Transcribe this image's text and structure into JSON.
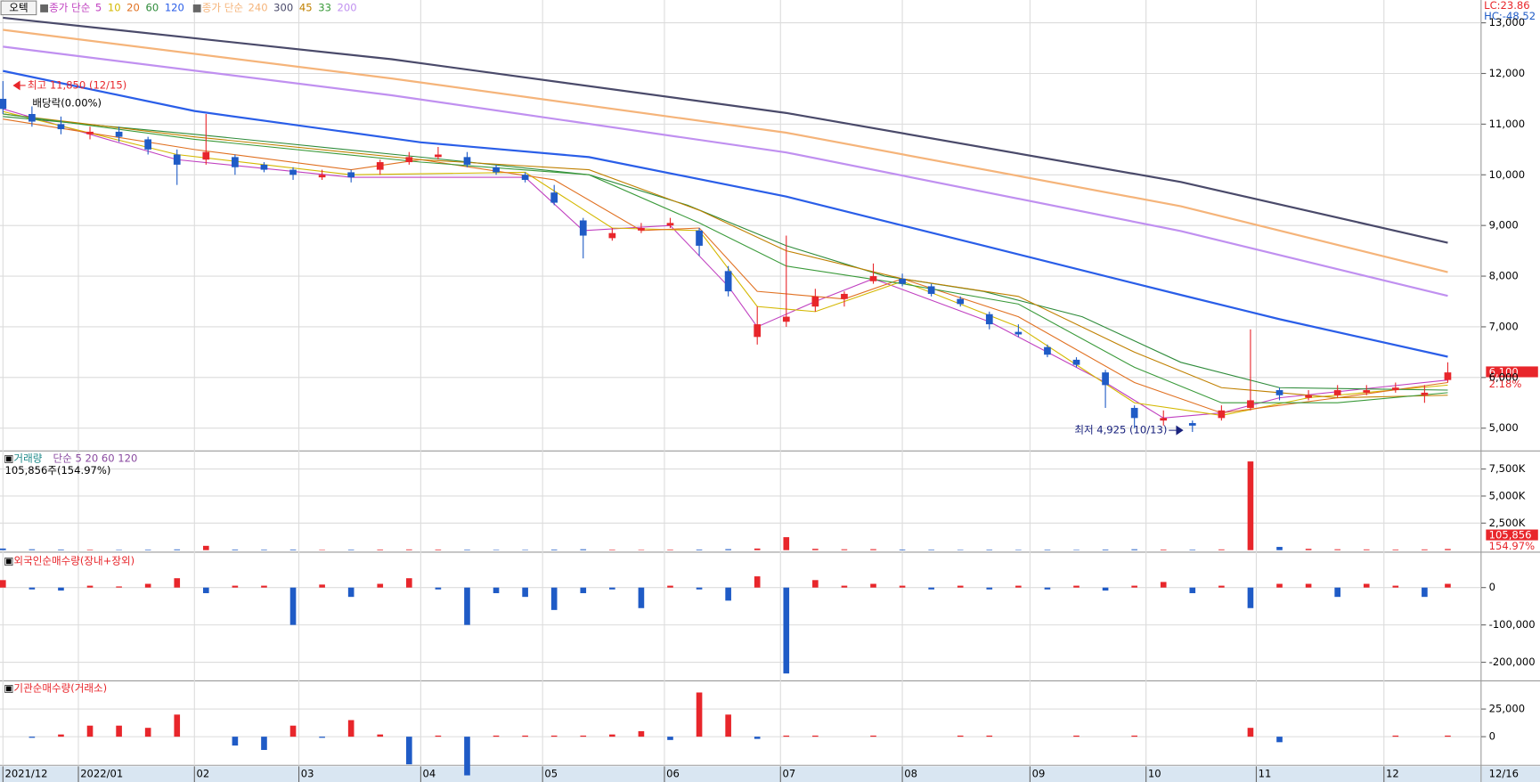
{
  "chart_data": {
    "type": "candlestick",
    "stock_button": "오텍",
    "lc_label": "LC:23.86",
    "hc_label": "HC:-48.52",
    "x": [
      0,
      5,
      10,
      15,
      20,
      25,
      30,
      35,
      40,
      45,
      50,
      55,
      60,
      65,
      70,
      75,
      80,
      85,
      90,
      95,
      100,
      105,
      110,
      115,
      120,
      125,
      130,
      135,
      140,
      145,
      150,
      155,
      160,
      165,
      170,
      175,
      180,
      185,
      190,
      195,
      200,
      205,
      210,
      215,
      220,
      225,
      230,
      235,
      240,
      245,
      249
    ],
    "xlim": [
      0,
      250
    ],
    "xticks": [
      {
        "value": 0,
        "label": "2021/12"
      },
      {
        "value": 13,
        "label": "2022/01"
      },
      {
        "value": 33,
        "label": "02"
      },
      {
        "value": 51,
        "label": "03"
      },
      {
        "value": 72,
        "label": "04"
      },
      {
        "value": 93,
        "label": "05"
      },
      {
        "value": 114,
        "label": "06"
      },
      {
        "value": 134,
        "label": "07"
      },
      {
        "value": 155,
        "label": "08"
      },
      {
        "value": 177,
        "label": "09"
      },
      {
        "value": 197,
        "label": "10"
      },
      {
        "value": 216,
        "label": "11"
      },
      {
        "value": 238,
        "label": "12"
      }
    ],
    "end_date_label": "12/16",
    "price": {
      "open": [
        11500,
        11200,
        11000,
        10800,
        10850,
        10700,
        10400,
        10300,
        10350,
        10200,
        10100,
        9950,
        10050,
        10100,
        10250,
        10350,
        10350,
        10150,
        10000,
        9650,
        9100,
        8750,
        8900,
        9000,
        8900,
        8100,
        6800,
        7100,
        7400,
        7550,
        7900,
        7950,
        7800,
        7550,
        7250,
        6900,
        6600,
        6350,
        6100,
        5400,
        5150,
        5100,
        5200,
        5400,
        5750,
        5600,
        5650,
        5700,
        5750,
        5650,
        5950
      ],
      "high": [
        11850,
        11350,
        11150,
        10950,
        10950,
        10750,
        10500,
        11200,
        10400,
        10250,
        10150,
        10100,
        10100,
        10300,
        10450,
        10550,
        10450,
        10200,
        10050,
        9800,
        9150,
        8950,
        9050,
        9150,
        8950,
        8200,
        7400,
        8800,
        7750,
        7700,
        8250,
        8050,
        7850,
        7600,
        7300,
        7050,
        6650,
        6400,
        6150,
        5450,
        5350,
        5150,
        5450,
        6950,
        5800,
        5750,
        5850,
        5850,
        5900,
        5850,
        6300
      ],
      "low": [
        11200,
        10950,
        10800,
        10700,
        10650,
        10400,
        9800,
        10200,
        10000,
        10050,
        9900,
        9900,
        9850,
        10000,
        10200,
        10300,
        10150,
        10000,
        9850,
        9400,
        8350,
        8700,
        8850,
        8950,
        8400,
        7600,
        6650,
        7000,
        7300,
        7400,
        7850,
        7800,
        7600,
        7400,
        6950,
        6800,
        6400,
        6200,
        5400,
        5000,
        5050,
        4925,
        5150,
        5350,
        5550,
        5550,
        5600,
        5650,
        5700,
        5500,
        5900
      ],
      "close": [
        11300,
        11050,
        10900,
        10850,
        10750,
        10500,
        10200,
        10450,
        10150,
        10100,
        10000,
        10000,
        9950,
        10250,
        10350,
        10400,
        10200,
        10050,
        9900,
        9450,
        8800,
        8850,
        8950,
        9050,
        8600,
        7700,
        7050,
        7200,
        7600,
        7650,
        8000,
        7850,
        7650,
        7450,
        7050,
        6850,
        6450,
        6250,
        5850,
        5200,
        5200,
        5050,
        5350,
        5550,
        5650,
        5650,
        5750,
        5750,
        5800,
        5700,
        6100
      ],
      "up_color": "#e8262b",
      "down_color": "#1f5bc6",
      "ylim": [
        4570,
        13450
      ],
      "yticks": [
        {
          "value": 5000,
          "label": "5,000"
        },
        {
          "value": 6000,
          "label": "6,000"
        },
        {
          "value": 7000,
          "label": "7,000"
        },
        {
          "value": 8000,
          "label": "8,000"
        },
        {
          "value": 9000,
          "label": "9,000"
        },
        {
          "value": 10000,
          "label": "10,000"
        },
        {
          "value": 11000,
          "label": "11,000"
        },
        {
          "value": 12000,
          "label": "12,000"
        },
        {
          "value": 13000,
          "label": "13,000"
        }
      ],
      "last_price_label": "6,100",
      "change_label": "2.18%",
      "high_annotation": "최고 11,850 (12/15)",
      "dividend_annotation": "배당락(0.00%)",
      "low_annotation": "최저 4,925 (10/13)",
      "ma_groups": [
        {
          "prefix": "종가 단순",
          "series": [
            {
              "name": "5",
              "color": "#c040c0",
              "x": [
                0,
                30,
                60,
                90,
                100,
                115,
                125,
                130,
                140,
                150,
                170,
                190,
                200,
                210,
                220,
                249
              ],
              "values": [
                11300,
                10300,
                9950,
                9950,
                8900,
                9000,
                7800,
                7000,
                7500,
                7950,
                7100,
                5900,
                5200,
                5300,
                5600,
                5950
              ]
            },
            {
              "name": "10",
              "color": "#d4b800",
              "x": [
                0,
                30,
                60,
                90,
                105,
                120,
                130,
                140,
                155,
                175,
                195,
                210,
                225,
                249
              ],
              "values": [
                11250,
                10400,
                10000,
                10050,
                8950,
                8900,
                7400,
                7300,
                7900,
                7000,
                5500,
                5250,
                5600,
                5850
              ]
            },
            {
              "name": "20",
              "color": "#e07020",
              "x": [
                0,
                33,
                60,
                72,
                95,
                110,
                120,
                130,
                145,
                155,
                175,
                195,
                210,
                230,
                249
              ],
              "values": [
                11100,
                10500,
                10100,
                10300,
                9900,
                8900,
                8950,
                7700,
                7550,
                7950,
                7200,
                5900,
                5300,
                5600,
                5900
              ]
            },
            {
              "name": "60",
              "color": "#2e8b3a",
              "x": [
                0,
                33,
                72,
                101,
                118,
                135,
                152,
                169,
                186,
                203,
                220,
                249
              ],
              "values": [
                11150,
                10800,
                10350,
                10000,
                9400,
                8600,
                8000,
                7700,
                7200,
                6300,
                5800,
                5750
              ]
            },
            {
              "name": "120",
              "color": "#2a5ee8",
              "x": [
                0,
                33,
                72,
                101,
                135,
                169,
                203,
                220,
                249
              ],
              "values": [
                12050,
                11260,
                10640,
                10350,
                9570,
                8600,
                7630,
                7150,
                6410
              ]
            }
          ]
        },
        {
          "prefix": "종가 단순",
          "series": [
            {
              "name": "240",
              "color": "#f5b47a",
              "x": [
                0,
                67,
                135,
                203,
                249
              ],
              "values": [
                12860,
                11900,
                10830,
                9380,
                8080
              ]
            },
            {
              "name": "300",
              "color": "#4a4a6a",
              "x": [
                0,
                67,
                135,
                203,
                249
              ],
              "values": [
                13100,
                12280,
                11220,
                9860,
                8660
              ]
            },
            {
              "name": "45",
              "color": "#c08000",
              "x": [
                0,
                33,
                72,
                101,
                120,
                135,
                155,
                175,
                195,
                210,
                230,
                249
              ],
              "values": [
                11200,
                10750,
                10300,
                10100,
                9300,
                8500,
                7950,
                7600,
                6500,
                5800,
                5600,
                5650
              ]
            },
            {
              "name": "33",
              "color": "#3a9a3a",
              "x": [
                0,
                33,
                72,
                101,
                120,
                135,
                155,
                175,
                195,
                210,
                230,
                249
              ],
              "values": [
                11200,
                10700,
                10250,
                10000,
                9050,
                8200,
                7850,
                7450,
                6200,
                5500,
                5500,
                5700
              ]
            },
            {
              "name": "200",
              "color": "#c090f0",
              "x": [
                0,
                67,
                135,
                203,
                249
              ],
              "values": [
                12530,
                11570,
                10440,
                8890,
                7610
              ]
            }
          ]
        }
      ]
    },
    "volume": {
      "title": "거래량",
      "legend": "단순 5 20 60 120",
      "summary": "105,856주(154.97%)",
      "values": [
        150000,
        80000,
        60000,
        50000,
        40000,
        50000,
        70000,
        400000,
        60000,
        50000,
        60000,
        40000,
        50000,
        60000,
        70000,
        60000,
        50000,
        40000,
        40000,
        60000,
        80000,
        50000,
        40000,
        50000,
        60000,
        90000,
        150000,
        1200000,
        120000,
        80000,
        90000,
        60000,
        50000,
        40000,
        50000,
        40000,
        50000,
        40000,
        60000,
        80000,
        60000,
        50000,
        70000,
        8200000,
        300000,
        120000,
        80000,
        70000,
        60000,
        70000,
        105856
      ],
      "ylim": [
        0,
        8900000
      ],
      "yticks": [
        {
          "value": 2500000,
          "label": "2,500K"
        },
        {
          "value": 5000000,
          "label": "5,000K"
        },
        {
          "value": 7500000,
          "label": "7,500K"
        }
      ],
      "last_label": "105,856",
      "ratio_label": "154.97%"
    },
    "foreign": {
      "title": "외국인순매수량(장내+장외)",
      "values": [
        20000,
        -5000,
        -8000,
        5000,
        3000,
        10000,
        25000,
        -15000,
        5000,
        5000,
        -100000,
        8000,
        -25000,
        10000,
        25000,
        -5000,
        -100000,
        -15000,
        -25000,
        -60000,
        -15000,
        -5000,
        -55000,
        5000,
        -5000,
        -35000,
        30000,
        -230000,
        20000,
        5000,
        10000,
        5000,
        -5000,
        5000,
        -5000,
        5000,
        -5000,
        5000,
        -8000,
        5000,
        15000,
        -15000,
        5000,
        -55000,
        10000,
        10000,
        -25000,
        10000,
        5000,
        -25000,
        10000
      ],
      "ylim": [
        -247000,
        87000
      ],
      "yticks": [
        {
          "value": -200000,
          "label": "-200,000"
        },
        {
          "value": -100000,
          "label": "-100,000"
        },
        0
      ]
    },
    "institution": {
      "title": "기관순매수량(거래소)",
      "values": [
        0,
        -1000,
        2000,
        10000,
        10000,
        8000,
        20000,
        0,
        -8000,
        -12000,
        10000,
        -1000,
        15000,
        2000,
        -25000,
        1000,
        -35000,
        1000,
        1000,
        1000,
        1000,
        2000,
        5000,
        -3000,
        40000,
        20000,
        -2000,
        1000,
        1000,
        0,
        1000,
        0,
        0,
        1000,
        1000,
        0,
        0,
        1000,
        0,
        1000,
        0,
        0,
        0,
        8000,
        -5000,
        0,
        0,
        0,
        1000,
        0,
        1000
      ],
      "ylim": [
        -25000,
        47000
      ],
      "yticks": [
        0,
        {
          "value": 25000,
          "label": "25,000"
        }
      ]
    }
  }
}
